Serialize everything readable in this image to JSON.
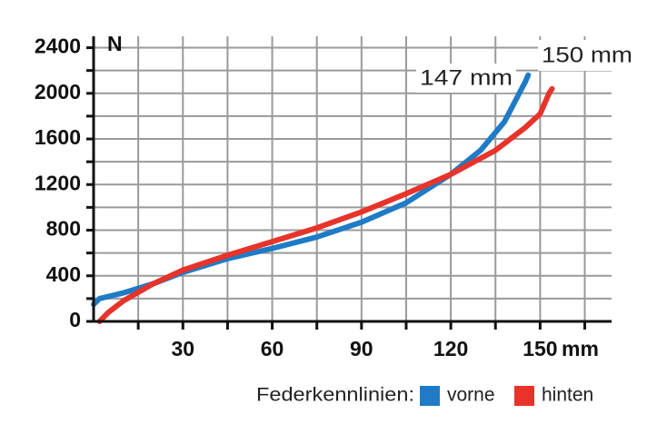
{
  "chart_data": {
    "type": "line",
    "y_label": "N",
    "x_label": "mm",
    "legend_title": "Federkennlinien:",
    "annotations": [
      "147 mm",
      "150 mm"
    ],
    "xlim": [
      0,
      174
    ],
    "ylim": [
      0,
      2500
    ],
    "xticks": [
      30,
      60,
      90,
      120,
      150
    ],
    "x_minor_ticks": [
      15,
      45,
      75,
      105,
      135,
      165
    ],
    "yticks": [
      0,
      400,
      800,
      1200,
      1600,
      2000,
      2400
    ],
    "y_minor_ticks": [
      200,
      600,
      1000,
      1400,
      1800,
      2200
    ],
    "grid": true,
    "series": [
      {
        "name": "vorne",
        "color": "#1f7bc6",
        "x": [
          0,
          2,
          10,
          20,
          30,
          45,
          60,
          75,
          90,
          105,
          120,
          130,
          138,
          143,
          145,
          146
        ],
        "values": [
          150,
          200,
          250,
          330,
          430,
          550,
          640,
          740,
          870,
          1040,
          1290,
          1500,
          1750,
          2000,
          2100,
          2160
        ]
      },
      {
        "name": "hinten",
        "color": "#e8332a",
        "x": [
          2,
          5,
          10,
          20,
          30,
          45,
          60,
          75,
          90,
          105,
          120,
          135,
          145,
          150,
          153,
          154
        ],
        "values": [
          0,
          80,
          180,
          330,
          450,
          580,
          700,
          820,
          960,
          1120,
          1290,
          1500,
          1700,
          1820,
          2000,
          2040
        ]
      }
    ]
  }
}
